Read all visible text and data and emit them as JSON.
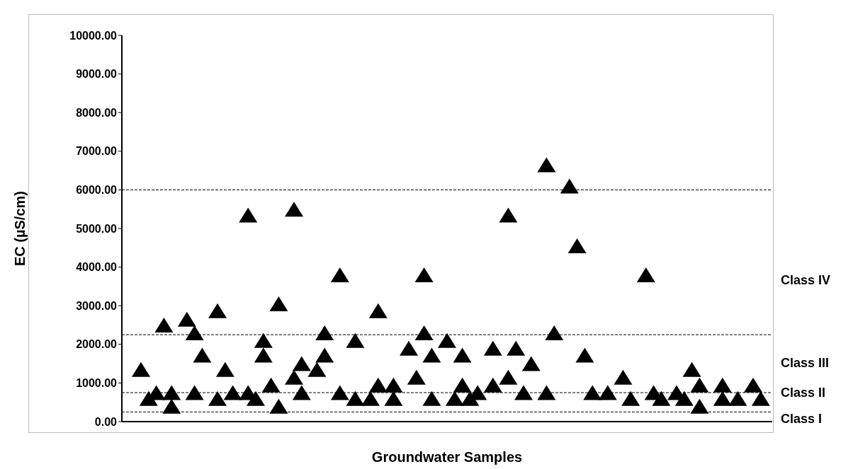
{
  "chart_data": {
    "type": "scatter",
    "xlabel": "Groundwater Samples",
    "ylabel": "EC (µS/cm)",
    "marker": "triangle",
    "categories": [
      null,
      null,
      null,
      null,
      null,
      null,
      null,
      null,
      null,
      null,
      null,
      null,
      null,
      null,
      null,
      null,
      null,
      null,
      null,
      null,
      null,
      null,
      null,
      null,
      null,
      null,
      null,
      null,
      null,
      null,
      null,
      null,
      null,
      null,
      null,
      null,
      null,
      null,
      null,
      null,
      null,
      null,
      null,
      null,
      null,
      null,
      null,
      null,
      null,
      null,
      null,
      null,
      null,
      null,
      null,
      null,
      null,
      null,
      null,
      null,
      null,
      null,
      null,
      null,
      null,
      null,
      null,
      null,
      null,
      null,
      null,
      null,
      null,
      null,
      null,
      null,
      null,
      null,
      null,
      null,
      null,
      null,
      null,
      null,
      null
    ],
    "series": [
      {
        "color": "#000000",
        "values": [
          null,
          null,
          1350,
          600,
          750,
          2500,
          750,
          null,
          2650,
          2300,
          1720,
          null,
          2870,
          1350,
          750,
          null,
          5350,
          600,
          2100,
          950,
          3050,
          null,
          5500,
          1500,
          null,
          1350,
          2300,
          null,
          3800,
          null,
          2100,
          null,
          600,
          2870,
          null,
          950,
          null,
          1900,
          1150,
          3800,
          1720,
          null,
          2100,
          600,
          1720,
          600,
          750,
          null,
          1900,
          null,
          5350,
          1900,
          750,
          1500,
          null,
          6650,
          2300,
          null,
          6100,
          4550,
          1720,
          750,
          null,
          750,
          null,
          1150,
          600,
          null,
          3800,
          750,
          600,
          null,
          750,
          600,
          1350,
          950,
          null,
          null,
          950,
          null,
          600,
          null,
          950,
          600,
          null
        ]
      },
      {
        "color": "#000000",
        "values": [
          null,
          null,
          null,
          null,
          null,
          null,
          400,
          null,
          null,
          750,
          null,
          null,
          600,
          null,
          null,
          null,
          750,
          null,
          1720,
          null,
          400,
          null,
          1150,
          750,
          null,
          null,
          1720,
          null,
          750,
          null,
          600,
          null,
          null,
          950,
          null,
          600,
          null,
          null,
          null,
          2300,
          600,
          null,
          null,
          null,
          950,
          null,
          null,
          null,
          950,
          null,
          1150,
          null,
          null,
          null,
          null,
          750,
          null,
          null,
          null,
          null,
          null,
          null,
          null,
          null,
          null,
          null,
          null,
          null,
          null,
          null,
          null,
          null,
          null,
          null,
          null,
          400,
          null,
          null,
          600,
          null,
          null,
          null,
          null,
          null,
          null
        ]
      }
    ],
    "ylim": [
      0,
      10000
    ],
    "yticks": [
      {
        "value": 0,
        "label": "0.00"
      },
      {
        "value": 1000,
        "label": "1000.00"
      },
      {
        "value": 2000,
        "label": "2000.00"
      },
      {
        "value": 3000,
        "label": "3000.00"
      },
      {
        "value": 4000,
        "label": "4000.00"
      },
      {
        "value": 5000,
        "label": "5000.00"
      },
      {
        "value": 6000,
        "label": "6000.00"
      },
      {
        "value": 7000,
        "label": "7000.00"
      },
      {
        "value": 8000,
        "label": "8000.00"
      },
      {
        "value": 9000,
        "label": "9000.00"
      },
      {
        "value": 10000,
        "label": "10000.00"
      }
    ],
    "ref_lines": [
      {
        "axis": "y",
        "value": 250,
        "color": "#000000",
        "line_style": "dashed"
      },
      {
        "axis": "y",
        "value": 750,
        "color": "#000000",
        "line_style": "dashed"
      },
      {
        "axis": "y",
        "value": 2250,
        "color": "#000000",
        "line_style": "dashed"
      },
      {
        "axis": "y",
        "value": 6000,
        "color": "#000000",
        "line_style": "dashed"
      }
    ],
    "annotations": [
      "Class I",
      "Class II",
      "Class III",
      "Class IV"
    ]
  }
}
